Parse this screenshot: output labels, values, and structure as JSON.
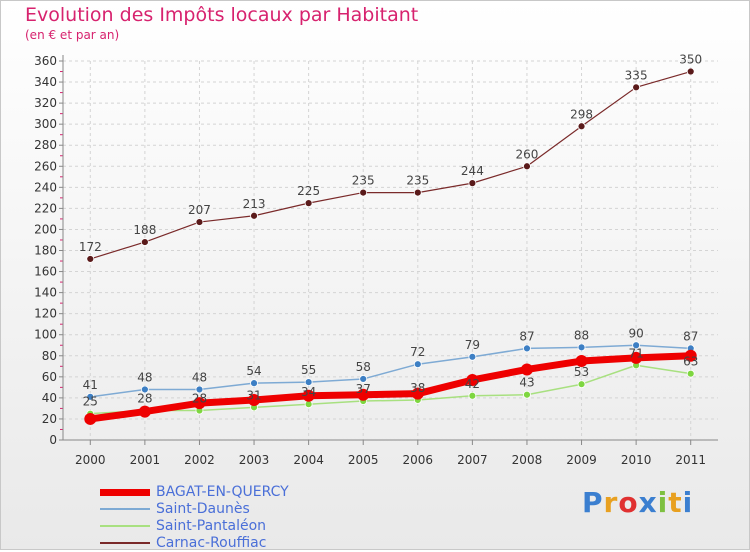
{
  "title": "Evolution des Impôts locaux par Habitant",
  "subtitle": "(en € et par an)",
  "logo": "Proxiti",
  "chart_data": {
    "type": "line",
    "x": [
      2000,
      2001,
      2002,
      2003,
      2004,
      2005,
      2006,
      2007,
      2008,
      2009,
      2010,
      2011
    ],
    "ylim": [
      0,
      360
    ],
    "yticks": [
      0,
      20,
      40,
      60,
      80,
      100,
      120,
      140,
      160,
      180,
      200,
      220,
      240,
      260,
      280,
      300,
      320,
      340,
      360
    ],
    "grid": true,
    "legend_position": "bottom-left",
    "series": [
      {
        "name": "Carnac-Rouffiac",
        "color": "#7a2a2a",
        "marker": "#5a1a1a",
        "width": 1.2,
        "values": [
          172,
          188,
          207,
          213,
          225,
          235,
          235,
          244,
          260,
          298,
          335,
          350
        ],
        "labels": true
      },
      {
        "name": "Saint-Daunès",
        "color": "#7eaad4",
        "marker": "#3d7fc4",
        "width": 1.5,
        "values": [
          41,
          48,
          48,
          54,
          55,
          58,
          72,
          79,
          87,
          88,
          90,
          87
        ],
        "labels": true
      },
      {
        "name": "Saint-Pantaléon",
        "color": "#a8e080",
        "marker": "#7ed640",
        "width": 1.5,
        "values": [
          25,
          28,
          28,
          31,
          34,
          37,
          38,
          42,
          43,
          53,
          71,
          63
        ],
        "labels": true
      },
      {
        "name": "BAGAT-EN-QUERCY",
        "color": "#ee0000",
        "marker": "#ee0000",
        "width": 7,
        "values": [
          20,
          27,
          35,
          38,
          42,
          43,
          44,
          57,
          67,
          75,
          78,
          80
        ],
        "labels": false
      }
    ]
  },
  "legend": [
    {
      "label": "BAGAT-EN-QUERCY",
      "color": "#ee0000",
      "thickness": 7
    },
    {
      "label": "Saint-Daunès",
      "color": "#7eaad4",
      "thickness": 2
    },
    {
      "label": "Saint-Pantaléon",
      "color": "#a8e080",
      "thickness": 2
    },
    {
      "label": "Carnac-Rouffiac",
      "color": "#7a2a2a",
      "thickness": 2
    }
  ]
}
